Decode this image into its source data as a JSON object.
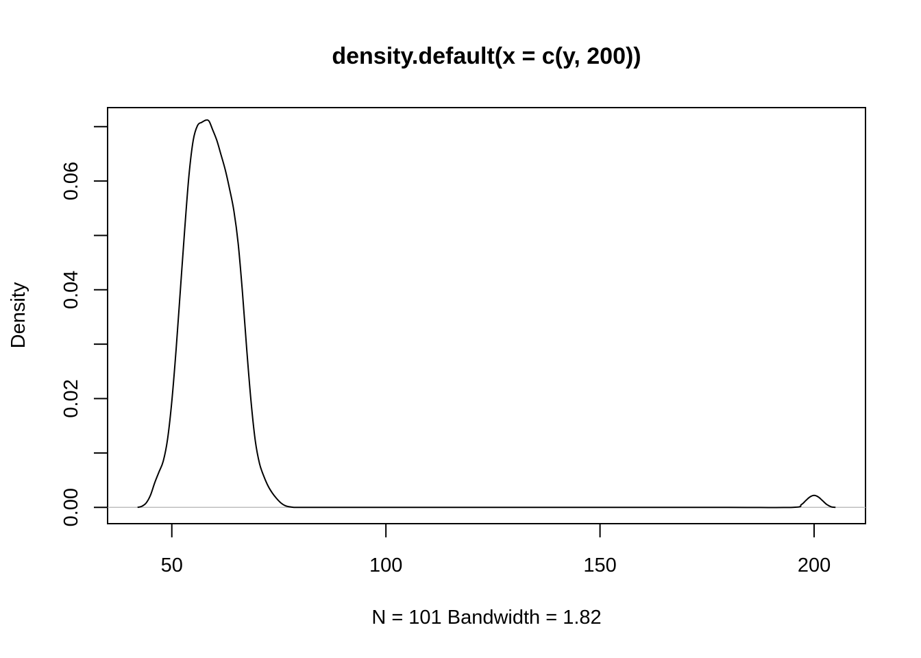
{
  "chart_data": {
    "type": "line",
    "title": "density.default(x = c(y, 200))",
    "xlabel": "N = 101   Bandwidth = 1.82",
    "ylabel": "Density",
    "xlim": [
      35,
      212
    ],
    "ylim": [
      -0.003,
      0.0735
    ],
    "x_ticks": [
      50,
      100,
      150,
      200
    ],
    "y_ticks": [
      0.0,
      0.01,
      0.02,
      0.03,
      0.04,
      0.05,
      0.06,
      0.07
    ],
    "y_tick_labels": [
      {
        "value": 0.0,
        "label": "0.00"
      },
      {
        "value": 0.02,
        "label": "0.02"
      },
      {
        "value": 0.04,
        "label": "0.04"
      },
      {
        "value": 0.06,
        "label": "0.06"
      }
    ],
    "grid": false,
    "zero_line": true,
    "colors": {
      "line": "#000000",
      "zero_line": "#bebebe"
    },
    "series": [
      {
        "x": [
          42,
          43,
          44,
          45,
          46,
          47,
          48,
          49,
          50,
          51,
          52,
          53,
          54,
          55,
          56,
          57,
          58,
          58.7,
          59.5,
          60.5,
          61.5,
          62.5,
          63.5,
          64.5,
          65.5,
          66.5,
          67.5,
          68.5,
          69.5,
          70.5,
          71.5,
          72.5,
          73.5,
          74.5,
          75.5,
          76.5,
          77.5,
          78.5,
          80,
          90,
          120,
          150,
          180,
          195,
          197,
          198,
          199,
          200,
          201,
          202,
          203,
          204,
          205
        ],
        "y": [
          0.0,
          0.0002,
          0.0008,
          0.0022,
          0.0045,
          0.0065,
          0.0085,
          0.0125,
          0.0195,
          0.029,
          0.04,
          0.051,
          0.061,
          0.0675,
          0.0702,
          0.0708,
          0.0712,
          0.071,
          0.0695,
          0.0675,
          0.0648,
          0.062,
          0.0585,
          0.0545,
          0.0485,
          0.0395,
          0.029,
          0.0195,
          0.0122,
          0.008,
          0.0057,
          0.0039,
          0.0026,
          0.0016,
          0.0008,
          0.0003,
          0.0001,
          0.0,
          0.0,
          0.0,
          0.0,
          0.0,
          0.0,
          0.0,
          0.0005,
          0.0012,
          0.0019,
          0.0022,
          0.0019,
          0.0012,
          0.0005,
          0.0001,
          0.0
        ]
      }
    ]
  }
}
